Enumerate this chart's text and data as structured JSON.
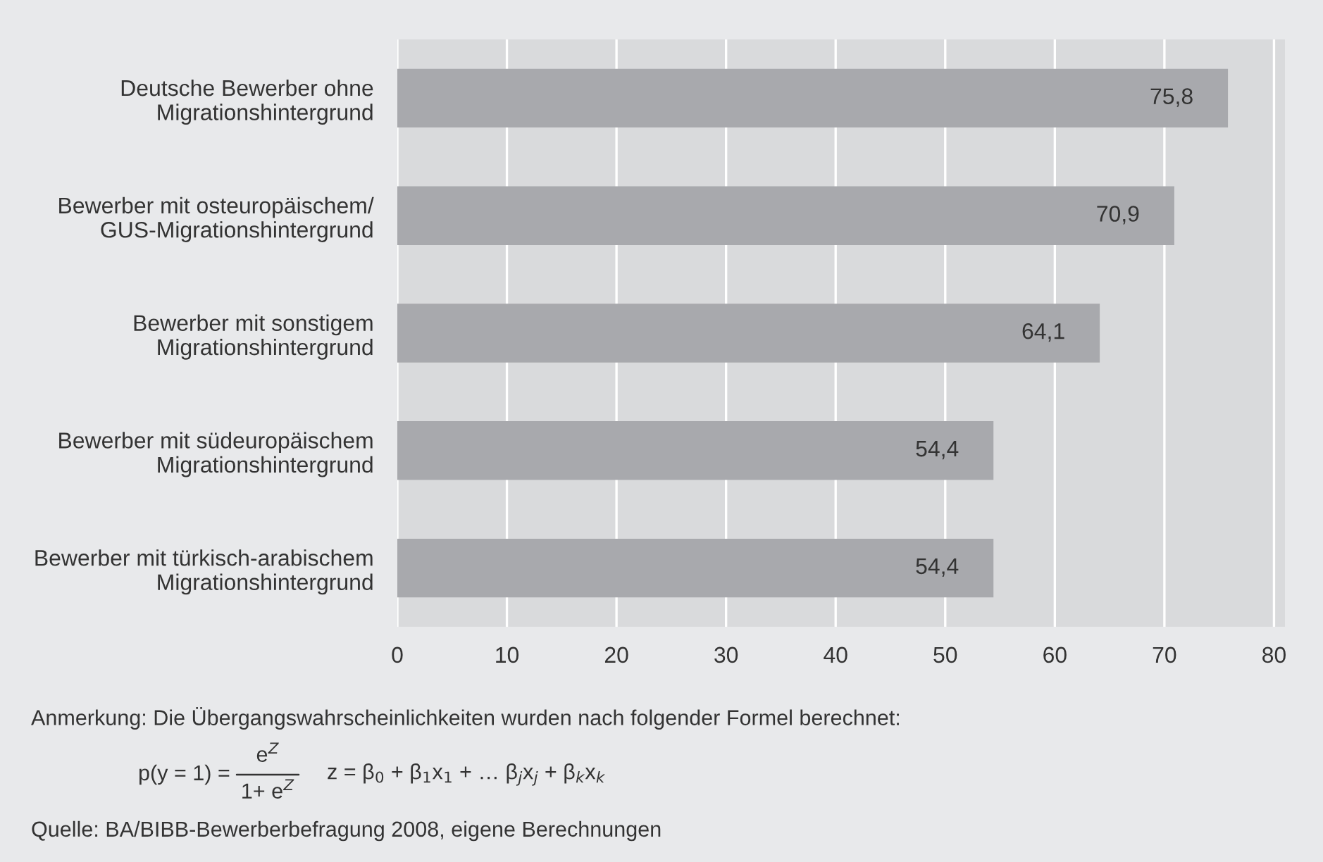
{
  "chart_data": {
    "type": "bar",
    "orientation": "horizontal",
    "categories": [
      "Deutsche Bewerber ohne\nMigrationshintergrund",
      "Bewerber mit osteuropäischem/\nGUS-Migrationshintergrund",
      "Bewerber mit sonstigem\nMigrationshintergrund",
      "Bewerber mit südeuropäischem\nMigrationshintergrund",
      "Bewerber mit türkisch-arabischem\nMigrationshintergrund"
    ],
    "values": [
      75.8,
      70.9,
      64.1,
      54.4,
      54.4
    ],
    "value_labels": [
      "75,8",
      "70,9",
      "64,1",
      "54,4",
      "54,4"
    ],
    "color": "#a8a9ad",
    "xlim": [
      0,
      81
    ],
    "xticks": [
      0,
      10,
      20,
      30,
      40,
      50,
      60,
      70,
      80
    ],
    "grid": "x",
    "legend": false,
    "annotations": [
      "Anmerkung: Die Übergangswahrscheinlichkeiten wurden nach folgender Formel berechnet:",
      "p(y = 1) =",
      "e$^{Z}$",
      "1+ e$^{Z}$",
      "z = β$_{0}$ + β$_{1}$x$_{1}$ + … β$_{j}$x$_{j}$ + β$_{k}$x$_{k}$",
      "Quelle: BA/BIBB-Bewerberbefragung 2008, eigene Berechnungen"
    ]
  }
}
